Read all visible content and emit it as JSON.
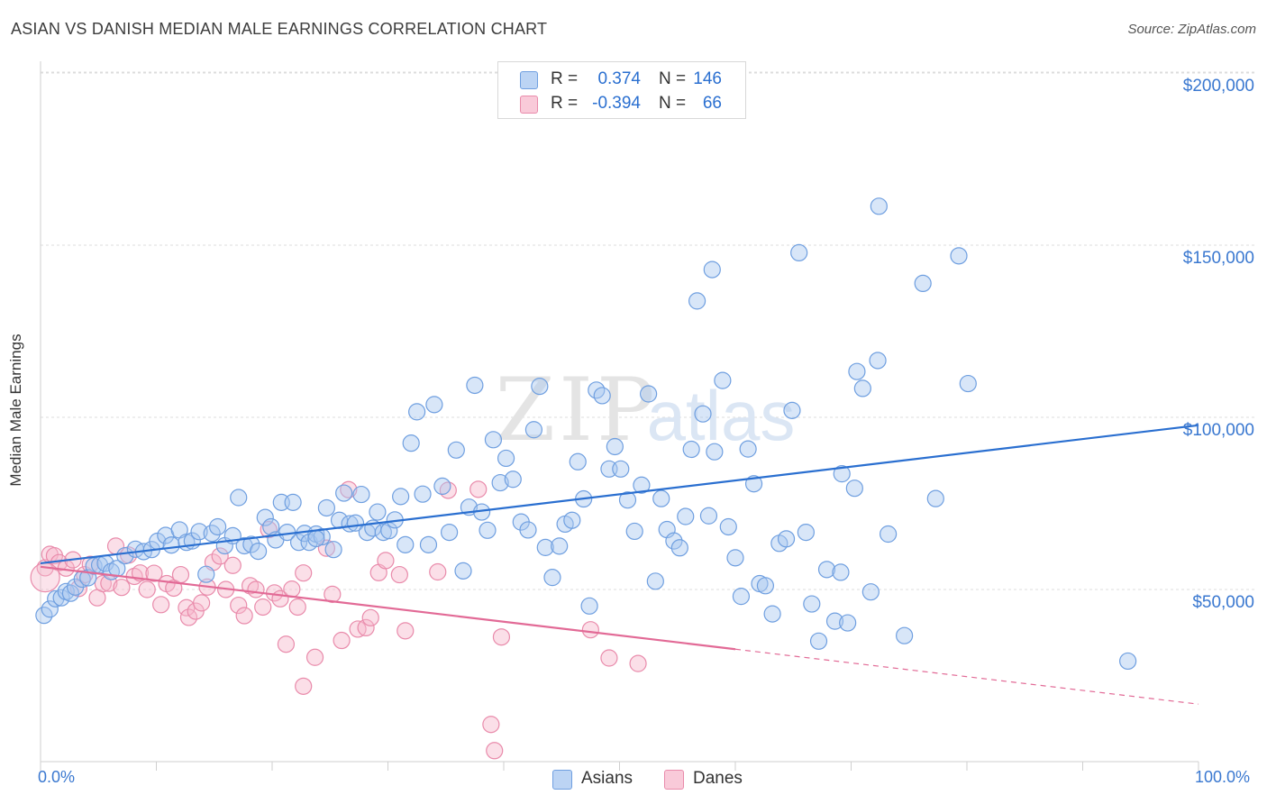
{
  "title": "ASIAN VS DANISH MEDIAN MALE EARNINGS CORRELATION CHART",
  "source": "Source: ZipAtlas.com",
  "watermark": {
    "zip": "ZIP",
    "atlas": "atlas"
  },
  "colors": {
    "blue_fill": "#a9c7f0",
    "blue_stroke": "#6f9fe0",
    "blue_line": "#2a6fd0",
    "pink_fill": "#f6b8cc",
    "pink_stroke": "#e98bab",
    "pink_line": "#e26a96",
    "tick_text": "#3a78d0",
    "grid": "#dcdcdc"
  },
  "legend_top": [
    {
      "r_label": "R =",
      "r_value": "0.374",
      "n_label": "N =",
      "n_value": "146",
      "series": "blue"
    },
    {
      "r_label": "R =",
      "r_value": "-0.394",
      "n_label": "N =",
      "n_value": "66",
      "series": "pink"
    }
  ],
  "legend_bottom": [
    {
      "label": "Asians",
      "series": "blue"
    },
    {
      "label": "Danes",
      "series": "pink"
    }
  ],
  "chart_data": {
    "type": "scatter",
    "title": "ASIAN VS DANISH MEDIAN MALE EARNINGS CORRELATION CHART",
    "xlabel": "",
    "ylabel": "Median Male Earnings",
    "xlim": [
      0,
      100
    ],
    "ylim": [
      0,
      200000
    ],
    "x_tick_labels": [
      "0.0%",
      "100.0%"
    ],
    "y_ticks": [
      {
        "value": 50000,
        "label": "$50,000"
      },
      {
        "value": 100000,
        "label": "$100,000"
      },
      {
        "value": 150000,
        "label": "$150,000"
      },
      {
        "value": 200000,
        "label": "$200,000"
      }
    ],
    "grid": true,
    "legend_position": "bottom",
    "series": [
      {
        "name": "Asians",
        "r": 0.374,
        "n": 146,
        "trend": {
          "x": [
            0,
            100
          ],
          "y": [
            57600,
            97700
          ],
          "dashed_from": null
        },
        "points": [
          [
            0.3,
            42500
          ],
          [
            0.8,
            44300
          ],
          [
            1.3,
            47300
          ],
          [
            1.8,
            47600
          ],
          [
            2.2,
            49400
          ],
          [
            2.6,
            48900
          ],
          [
            3.0,
            50700
          ],
          [
            3.6,
            53000
          ],
          [
            4.1,
            53400
          ],
          [
            4.6,
            56800
          ],
          [
            5.1,
            57100
          ],
          [
            5.6,
            57600
          ],
          [
            6.1,
            55200
          ],
          [
            6.6,
            56100
          ],
          [
            7.3,
            59800
          ],
          [
            8.2,
            61700
          ],
          [
            8.9,
            61000
          ],
          [
            9.6,
            61600
          ],
          [
            10.1,
            64000
          ],
          [
            10.8,
            65700
          ],
          [
            11.3,
            62900
          ],
          [
            12.0,
            67300
          ],
          [
            12.6,
            63700
          ],
          [
            13.1,
            64100
          ],
          [
            13.7,
            66800
          ],
          [
            14.3,
            54400
          ],
          [
            14.8,
            66300
          ],
          [
            15.3,
            68200
          ],
          [
            15.9,
            62700
          ],
          [
            16.6,
            65600
          ],
          [
            17.1,
            76700
          ],
          [
            17.6,
            62700
          ],
          [
            18.2,
            63100
          ],
          [
            18.8,
            61100
          ],
          [
            19.4,
            70900
          ],
          [
            19.9,
            68200
          ],
          [
            20.3,
            64400
          ],
          [
            20.8,
            75300
          ],
          [
            21.3,
            66600
          ],
          [
            21.8,
            75300
          ],
          [
            22.3,
            63700
          ],
          [
            22.8,
            66300
          ],
          [
            23.2,
            63700
          ],
          [
            23.8,
            66100
          ],
          [
            24.3,
            65300
          ],
          [
            24.7,
            73700
          ],
          [
            25.3,
            61600
          ],
          [
            25.8,
            70100
          ],
          [
            26.2,
            78000
          ],
          [
            26.7,
            69100
          ],
          [
            27.2,
            69300
          ],
          [
            27.7,
            77600
          ],
          [
            28.2,
            66600
          ],
          [
            28.7,
            67800
          ],
          [
            29.1,
            72500
          ],
          [
            29.6,
            66600
          ],
          [
            30.1,
            67100
          ],
          [
            30.6,
            70200
          ],
          [
            31.1,
            77000
          ],
          [
            31.5,
            63000
          ],
          [
            32.0,
            92500
          ],
          [
            32.5,
            101600
          ],
          [
            33.0,
            77700
          ],
          [
            33.5,
            63000
          ],
          [
            34.0,
            103700
          ],
          [
            34.7,
            80000
          ],
          [
            35.3,
            66600
          ],
          [
            35.9,
            90500
          ],
          [
            36.5,
            55400
          ],
          [
            37.0,
            73900
          ],
          [
            37.5,
            109300
          ],
          [
            38.1,
            72500
          ],
          [
            38.6,
            67200
          ],
          [
            39.1,
            93500
          ],
          [
            39.7,
            81000
          ],
          [
            40.2,
            88100
          ],
          [
            40.8,
            82000
          ],
          [
            41.5,
            69600
          ],
          [
            42.1,
            67300
          ],
          [
            42.6,
            96400
          ],
          [
            43.1,
            109000
          ],
          [
            43.6,
            62200
          ],
          [
            44.2,
            53500
          ],
          [
            44.8,
            62600
          ],
          [
            45.3,
            69000
          ],
          [
            45.9,
            70100
          ],
          [
            46.4,
            87100
          ],
          [
            46.9,
            76300
          ],
          [
            47.4,
            45200
          ],
          [
            48.0,
            107900
          ],
          [
            48.5,
            106300
          ],
          [
            49.1,
            85000
          ],
          [
            49.6,
            91500
          ],
          [
            50.1,
            85000
          ],
          [
            50.7,
            76000
          ],
          [
            51.3,
            66900
          ],
          [
            51.9,
            80300
          ],
          [
            52.5,
            106800
          ],
          [
            53.1,
            52400
          ],
          [
            53.6,
            76400
          ],
          [
            54.1,
            67400
          ],
          [
            54.7,
            64100
          ],
          [
            55.2,
            62100
          ],
          [
            55.7,
            71200
          ],
          [
            56.2,
            90700
          ],
          [
            56.7,
            133800
          ],
          [
            57.2,
            101000
          ],
          [
            57.7,
            71400
          ],
          [
            58.2,
            90000
          ],
          [
            58.9,
            110700
          ],
          [
            59.4,
            68200
          ],
          [
            60.0,
            59200
          ],
          [
            60.5,
            48000
          ],
          [
            61.1,
            90800
          ],
          [
            61.6,
            80700
          ],
          [
            62.1,
            51700
          ],
          [
            62.6,
            51100
          ],
          [
            63.2,
            42900
          ],
          [
            63.8,
            63400
          ],
          [
            64.4,
            64700
          ],
          [
            64.9,
            102000
          ],
          [
            65.5,
            147800
          ],
          [
            66.1,
            66600
          ],
          [
            66.6,
            45800
          ],
          [
            67.2,
            35000
          ],
          [
            67.9,
            55800
          ],
          [
            68.6,
            40800
          ],
          [
            69.1,
            55000
          ],
          [
            69.7,
            40300
          ],
          [
            70.5,
            113300
          ],
          [
            71.0,
            108400
          ],
          [
            71.7,
            49300
          ],
          [
            72.3,
            116500
          ],
          [
            73.2,
            66100
          ],
          [
            74.6,
            36600
          ],
          [
            76.2,
            138900
          ],
          [
            77.3,
            76400
          ],
          [
            79.3,
            146900
          ],
          [
            80.1,
            109800
          ],
          [
            93.9,
            29200
          ],
          [
            58.0,
            142900
          ],
          [
            70.3,
            79400
          ],
          [
            72.4,
            161300
          ],
          [
            69.2,
            83600
          ],
          [
            23.8,
            64800
          ]
        ]
      },
      {
        "name": "Danes",
        "r": -0.394,
        "n": 66,
        "trend": {
          "x": [
            0,
            100
          ],
          "y": [
            56600,
            16700
          ],
          "dashed_from": 60
        },
        "points": [
          [
            0.4,
            56300
          ],
          [
            0.8,
            60200
          ],
          [
            1.2,
            59800
          ],
          [
            1.6,
            57800
          ],
          [
            2.2,
            56200
          ],
          [
            2.8,
            58600
          ],
          [
            3.3,
            50300
          ],
          [
            3.8,
            54300
          ],
          [
            4.3,
            57300
          ],
          [
            4.9,
            47600
          ],
          [
            5.4,
            51700
          ],
          [
            5.9,
            51800
          ],
          [
            6.5,
            62600
          ],
          [
            7.0,
            50600
          ],
          [
            7.6,
            60000
          ],
          [
            8.1,
            53800
          ],
          [
            8.6,
            54800
          ],
          [
            9.2,
            50000
          ],
          [
            9.8,
            54700
          ],
          [
            10.4,
            45600
          ],
          [
            10.9,
            51700
          ],
          [
            11.5,
            50400
          ],
          [
            12.1,
            54300
          ],
          [
            12.6,
            44700
          ],
          [
            12.8,
            41900
          ],
          [
            13.4,
            43700
          ],
          [
            13.9,
            46100
          ],
          [
            14.4,
            50700
          ],
          [
            14.9,
            57900
          ],
          [
            15.5,
            59700
          ],
          [
            16.0,
            50000
          ],
          [
            16.6,
            57000
          ],
          [
            17.1,
            45400
          ],
          [
            17.6,
            42400
          ],
          [
            18.1,
            51100
          ],
          [
            18.6,
            50000
          ],
          [
            19.2,
            44900
          ],
          [
            19.7,
            67400
          ],
          [
            20.2,
            49000
          ],
          [
            20.7,
            47300
          ],
          [
            21.2,
            34100
          ],
          [
            21.7,
            50100
          ],
          [
            22.2,
            44900
          ],
          [
            22.7,
            21900
          ],
          [
            23.7,
            30300
          ],
          [
            24.7,
            62000
          ],
          [
            25.2,
            48600
          ],
          [
            26.0,
            35200
          ],
          [
            26.6,
            79000
          ],
          [
            27.4,
            38500
          ],
          [
            28.1,
            38900
          ],
          [
            28.5,
            41800
          ],
          [
            29.2,
            54900
          ],
          [
            29.8,
            58400
          ],
          [
            31.0,
            54300
          ],
          [
            31.5,
            38000
          ],
          [
            34.3,
            55100
          ],
          [
            35.2,
            78800
          ],
          [
            37.8,
            79100
          ],
          [
            38.9,
            10800
          ],
          [
            39.2,
            3200
          ],
          [
            39.8,
            36200
          ],
          [
            47.5,
            38300
          ],
          [
            49.1,
            30100
          ],
          [
            51.6,
            28500
          ],
          [
            22.7,
            54800
          ]
        ]
      }
    ]
  }
}
